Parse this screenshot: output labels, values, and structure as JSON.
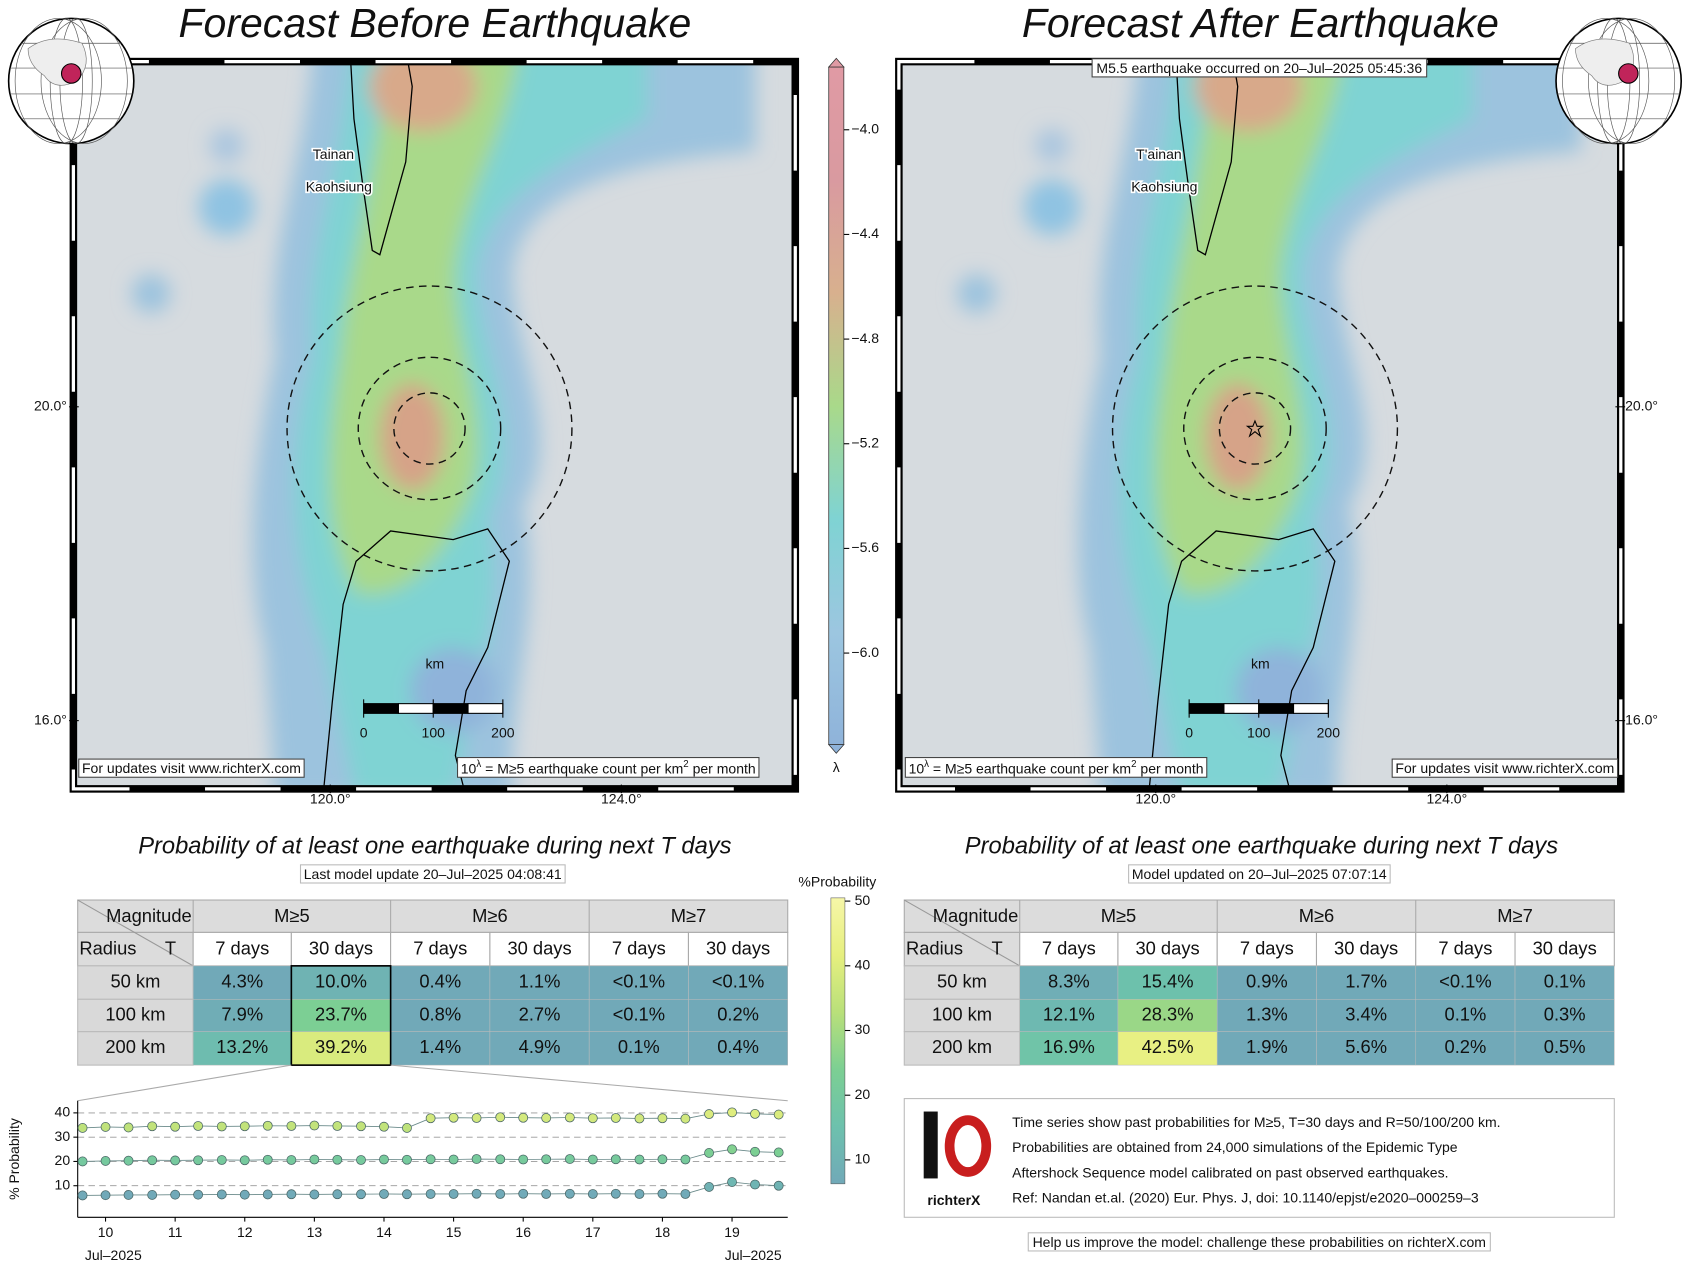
{
  "map_axes": {
    "lat_range": [
      15.13,
      24.4
    ],
    "lon_range": [
      116.47,
      126.39
    ],
    "lat_ticks": [
      {
        "value": 20,
        "label": "20.0°"
      },
      {
        "value": 16,
        "label": "16.0°"
      }
    ],
    "lon_ticks": [
      {
        "value": 120,
        "label": "120.0°"
      },
      {
        "value": 124,
        "label": "124.0°"
      }
    ],
    "scale_bar": {
      "unit": "km",
      "ticks": [
        0,
        100,
        200
      ]
    },
    "credit": "For updates visit www.richterX.com",
    "formula": {
      "base": "10",
      "exp": "λ",
      "text": " = M≥5 earthquake count per km",
      "sup": "2",
      "tail": " per month"
    }
  },
  "maps": [
    {
      "title": "Forecast Before Earthquake",
      "place_labels": [
        "Tainan",
        "Kaohsiung"
      ]
    },
    {
      "title": "Forecast After Earthquake",
      "place_labels": [
        "T'ainan",
        "Kaohsiung"
      ],
      "annotation": "M5.5 earthquake occurred on 20–Jul–2025 05:45:36"
    }
  ],
  "lambda_colorbar": {
    "title": "λ",
    "lim": [
      -6.35,
      -3.76
    ],
    "colors": [
      "#8fb3da",
      "#9cc6e0",
      "#7fd3d3",
      "#a9d98a",
      "#d8b08e",
      "#d99aa0",
      "#e09aa4"
    ],
    "ticks": [
      {
        "value": -4,
        "label": "−4.0"
      },
      {
        "value": -4.4,
        "label": "−4.4"
      },
      {
        "value": -4.8,
        "label": "−4.8"
      },
      {
        "value": -5.2,
        "label": "−5.2"
      },
      {
        "value": -5.6,
        "label": "−5.6"
      },
      {
        "value": -6,
        "label": "−6.0"
      }
    ]
  },
  "tables": [
    {
      "title": "Probability of at least one earthquake during next T days",
      "subtitle": "Last model update 20–Jul–2025 04:08:41",
      "corner": [
        "Magnitude",
        "Radius",
        "T"
      ],
      "magnitudes": [
        "M≥5",
        "M≥6",
        "M≥7"
      ],
      "periods": [
        "7 days",
        "30 days"
      ],
      "radii": [
        "50 km",
        "100 km",
        "200 km"
      ],
      "cells": [
        [
          "4.3%",
          "10.0%",
          "0.4%",
          "1.1%",
          "<0.1%",
          "<0.1%"
        ],
        [
          "7.9%",
          "23.7%",
          "0.8%",
          "2.7%",
          "<0.1%",
          "0.2%"
        ],
        [
          "13.2%",
          "39.2%",
          "1.4%",
          "4.9%",
          "0.1%",
          "0.4%"
        ]
      ]
    },
    {
      "title": "Probability of at least one earthquake during next T days",
      "subtitle": "Model updated on 20–Jul–2025 07:07:14",
      "corner": [
        "Magnitude",
        "Radius",
        "T"
      ],
      "magnitudes": [
        "M≥5",
        "M≥6",
        "M≥7"
      ],
      "periods": [
        "7 days",
        "30 days"
      ],
      "radii": [
        "50 km",
        "100 km",
        "200 km"
      ],
      "cells": [
        [
          "8.3%",
          "15.4%",
          "0.9%",
          "1.7%",
          "<0.1%",
          "0.1%"
        ],
        [
          "12.1%",
          "28.3%",
          "1.3%",
          "3.4%",
          "0.1%",
          "0.3%"
        ],
        [
          "16.9%",
          "42.5%",
          "1.9%",
          "5.6%",
          "0.2%",
          "0.5%"
        ]
      ]
    }
  ],
  "prob_colorbar": {
    "title": "%Probability",
    "lim": [
      6.3,
      50.5
    ],
    "ticks": [
      10,
      20,
      30,
      40,
      50
    ],
    "colors": [
      "#71a9b8",
      "#6dc1ad",
      "#7ccf93",
      "#b9e07a",
      "#e6ef7f",
      "#f6f6a8"
    ]
  },
  "chart_data": {
    "type": "line",
    "y_label": "% Probability",
    "x_period_label": "Jul–2025",
    "x": [
      9.67,
      10,
      10.33,
      10.67,
      11,
      11.33,
      11.67,
      12,
      12.33,
      12.67,
      13,
      13.33,
      13.67,
      14,
      14.33,
      14.67,
      15,
      15.33,
      15.67,
      16,
      16.33,
      16.67,
      17,
      17.33,
      17.67,
      18,
      18.33,
      18.67,
      19,
      19.33,
      19.67
    ],
    "xlim": [
      9.6,
      19.8
    ],
    "xticks": [
      10,
      11,
      12,
      13,
      14,
      15,
      16,
      17,
      18,
      19
    ],
    "ylim": [
      -3,
      45
    ],
    "yticks": [
      10,
      20,
      30,
      40
    ],
    "grid": true,
    "series": [
      {
        "values": [
          33.8,
          34.2,
          34,
          34.5,
          34.3,
          34.6,
          34.4,
          34.5,
          34.7,
          34.6,
          34.8,
          34.6,
          34.5,
          34.3,
          33.8,
          37.8,
          38,
          37.9,
          38.2,
          38,
          37.9,
          38.1,
          37.8,
          37.9,
          37.7,
          37.8,
          37.6,
          39.5,
          40.2,
          39.6,
          39.3
        ]
      },
      {
        "values": [
          20,
          20.2,
          20.3,
          20.5,
          20.4,
          20.5,
          20.6,
          20.5,
          20.7,
          20.6,
          20.8,
          20.7,
          20.6,
          20.8,
          20.7,
          20.9,
          20.8,
          21,
          20.9,
          20.8,
          20.9,
          21,
          20.8,
          20.9,
          20.8,
          20.9,
          20.8,
          23.5,
          25,
          24,
          23.7
        ]
      },
      {
        "values": [
          6,
          6.1,
          6.2,
          6.2,
          6.3,
          6.3,
          6.4,
          6.3,
          6.4,
          6.5,
          6.4,
          6.5,
          6.5,
          6.6,
          6.5,
          6.6,
          6.6,
          6.7,
          6.6,
          6.7,
          6.6,
          6.7,
          6.6,
          6.7,
          6.6,
          6.7,
          6.6,
          9.5,
          11.5,
          10.5,
          10
        ]
      }
    ]
  },
  "info": {
    "notes": [
      "Time series show past probabilities for M≥5, T=30 days and R=50/100/200 km.",
      "Probabilities are obtained from 24,000 simulations of the Epidemic Type",
      "Aftershock Sequence model calibrated on past observed earthquakes.",
      "Ref: Nandan et.al. (2020) Eur. Phys. J, doi: 10.1140/epjst/e2020–000259–3"
    ],
    "logo_text": "richterX",
    "footer": "Help us improve the model: challenge these probabilities on richterX.com"
  }
}
